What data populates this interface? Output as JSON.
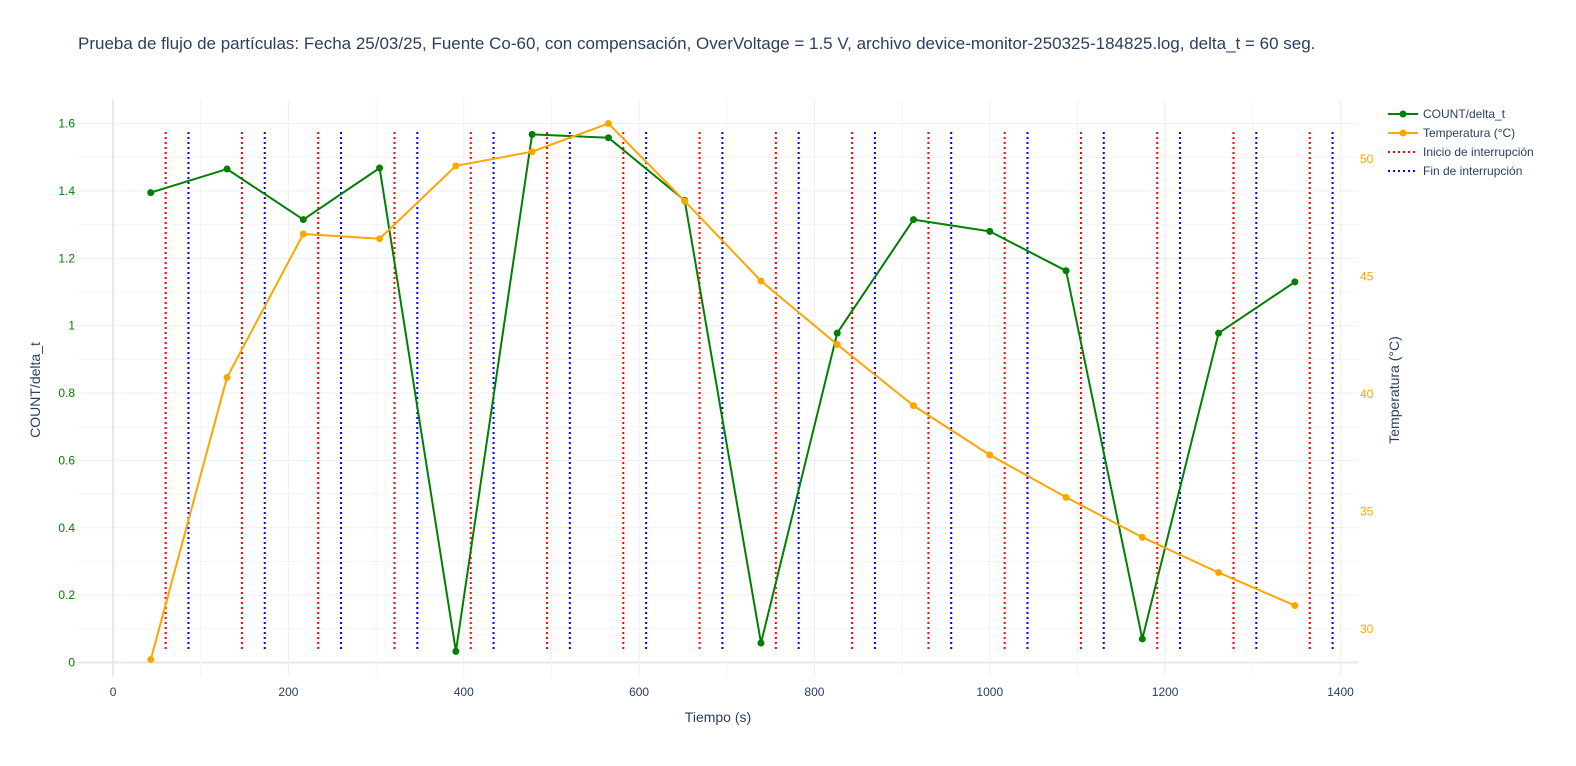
{
  "chart_data": {
    "type": "line",
    "title": "Prueba de flujo de partículas: Fecha 25/03/25, Fuente Co-60, con compensación, OverVoltage = 1.5 V, archivo device-monitor-250325-184825.log, delta_t = 60 seg.",
    "xlabel": "Tiempo (s)",
    "ylabel": "COUNT/delta_t",
    "y2label": "Temperatura (°C)",
    "xlim": [
      -40,
      1420
    ],
    "ylim": [
      -0.04,
      1.67
    ],
    "y2lim": [
      28.0,
      52.5
    ],
    "xticks": [
      0,
      200,
      400,
      600,
      800,
      1000,
      1200,
      1400
    ],
    "xtick_labels": [
      "0",
      "200",
      "400",
      "600",
      "800",
      "1000",
      "1200",
      "1400"
    ],
    "yticks": [
      0,
      0.2,
      0.4,
      0.6,
      0.8,
      1.0,
      1.2,
      1.4,
      1.6
    ],
    "ytick_labels": [
      "0",
      "0.2",
      "0.4",
      "0.6",
      "0.8",
      "1",
      "1.2",
      "1.4",
      "1.6"
    ],
    "y2ticks": [
      30,
      35,
      40,
      45,
      50
    ],
    "y2tick_labels": [
      "30",
      "35",
      "40",
      "45",
      "50"
    ],
    "grid": true,
    "legend_position": "top-right",
    "x": [
      43,
      130,
      217,
      304,
      391,
      478,
      565,
      652,
      739,
      826,
      913,
      1000,
      1087,
      1174,
      1261,
      1348
    ],
    "series": [
      {
        "name": "COUNT/delta_t",
        "axis": "y",
        "color": "#008000",
        "values": [
          1.395,
          1.465,
          1.315,
          1.468,
          0.033,
          1.568,
          1.558,
          1.372,
          0.058,
          0.978,
          1.315,
          1.28,
          1.163,
          0.07,
          0.978,
          1.13
        ]
      },
      {
        "name": "Temperatura (°C)",
        "axis": "y2",
        "color": "#FFA500",
        "values": [
          28.7,
          40.7,
          46.8,
          46.6,
          49.7,
          50.3,
          51.5,
          48.2,
          44.8,
          42.1,
          39.5,
          37.4,
          35.6,
          33.9,
          32.4,
          31.0
        ]
      }
    ],
    "vlines": [
      {
        "name": "Inicio de interrupción",
        "color": "#ff0000",
        "style": "dotted",
        "x": [
          60,
          147,
          234,
          321,
          408,
          495,
          582,
          669,
          756,
          843,
          930,
          1017,
          1104,
          1191,
          1278,
          1365
        ]
      },
      {
        "name": "Fin de interrupción",
        "color": "#0000ff",
        "style": "dotted",
        "x": [
          86,
          173,
          260,
          347,
          434,
          521,
          608,
          695,
          782,
          869,
          956,
          1043,
          1130,
          1217,
          1304,
          1391
        ]
      }
    ]
  }
}
